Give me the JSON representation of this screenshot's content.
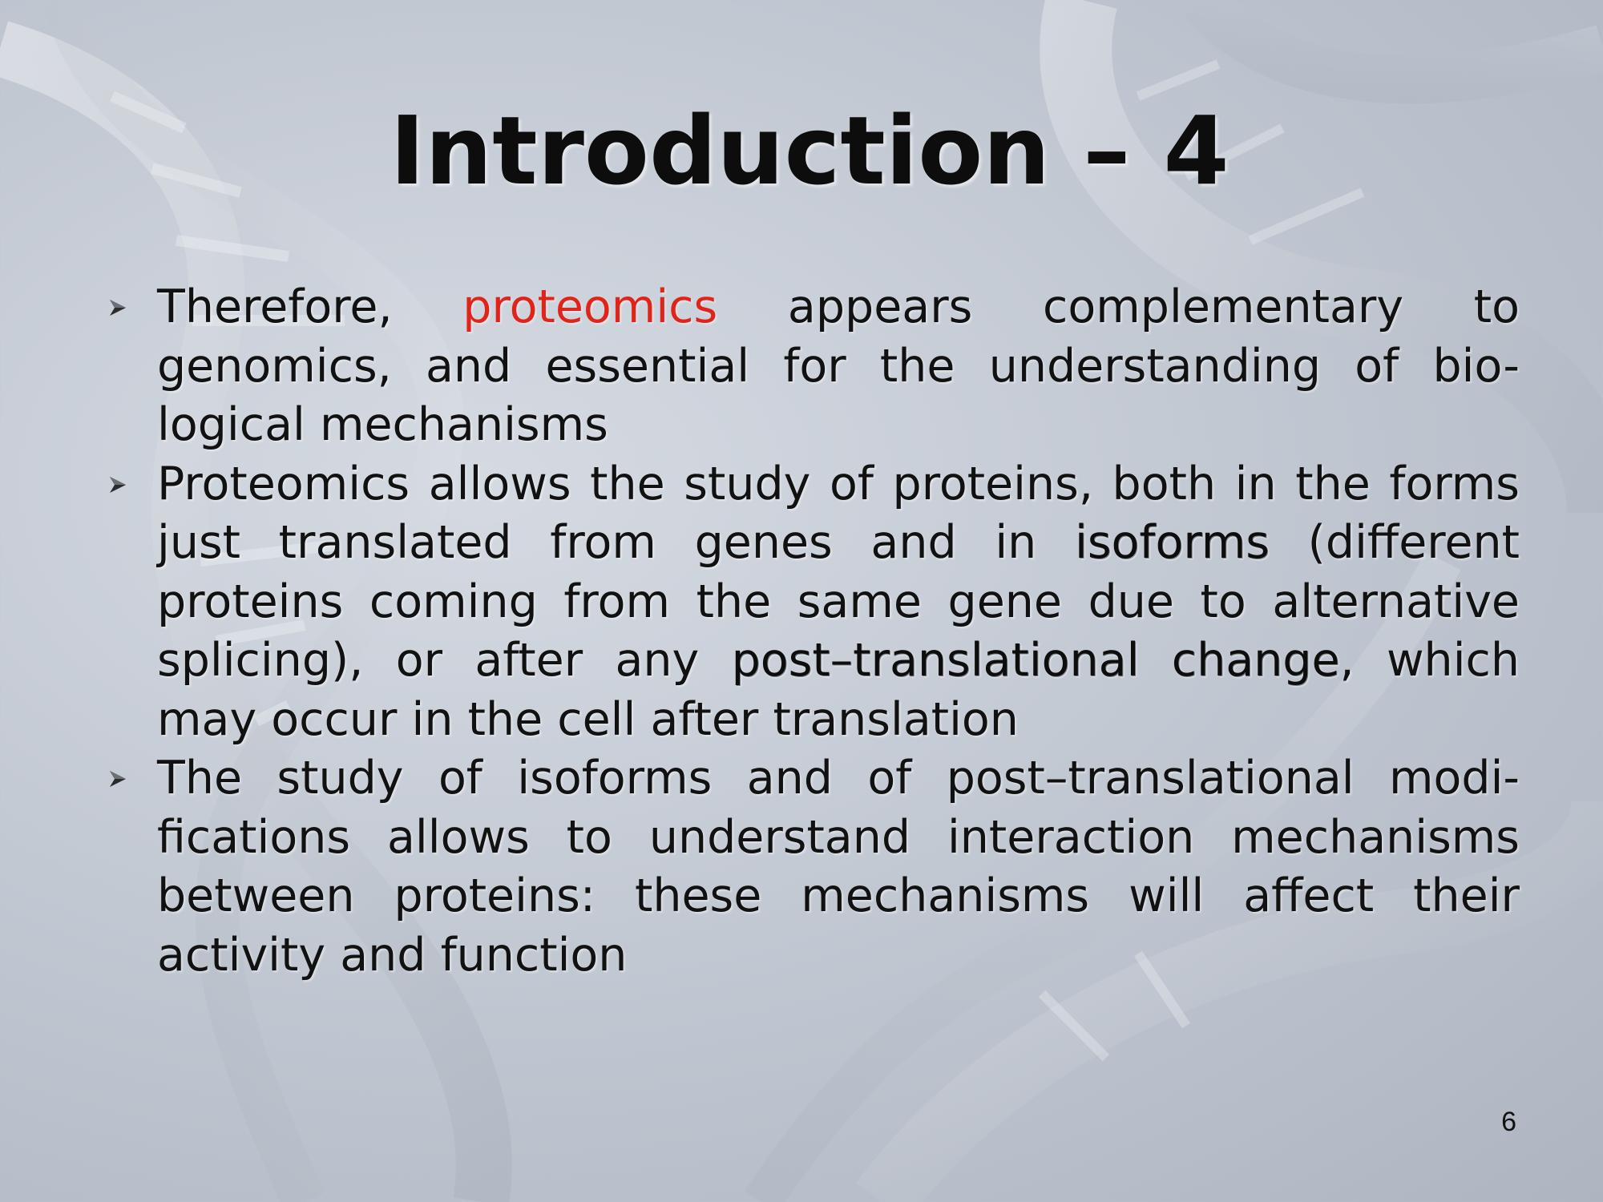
{
  "slide": {
    "title": "Introduction – 4",
    "page_number": "6"
  },
  "bullets": [
    {
      "seg0": "Therefore, ",
      "highlight": "proteomics",
      "seg1": " appears complementary to genomics, and essential for the understanding of bio-logical mechanisms"
    },
    {
      "seg0": "Proteomics allows the study of proteins, both in the forms just translated from genes and in ",
      "key1": "isoforms",
      "seg1": " (different proteins coming from the same gene due to alternative splicing), or after any ",
      "key2": "post–translational change",
      "seg2": ", which may occur in the cell after translation"
    },
    {
      "seg0": "The study of isoforms and of post–translational modi-fications allows to understand interaction mechanisms between proteins: these mechanisms will affect their activity and function"
    }
  ],
  "colors": {
    "highlight": "#e0241a",
    "text": "#111111",
    "background": "#c3c9d3"
  },
  "icons": {
    "bullet": "arrow-bullet-icon",
    "background": "dna-helix-watermark"
  }
}
